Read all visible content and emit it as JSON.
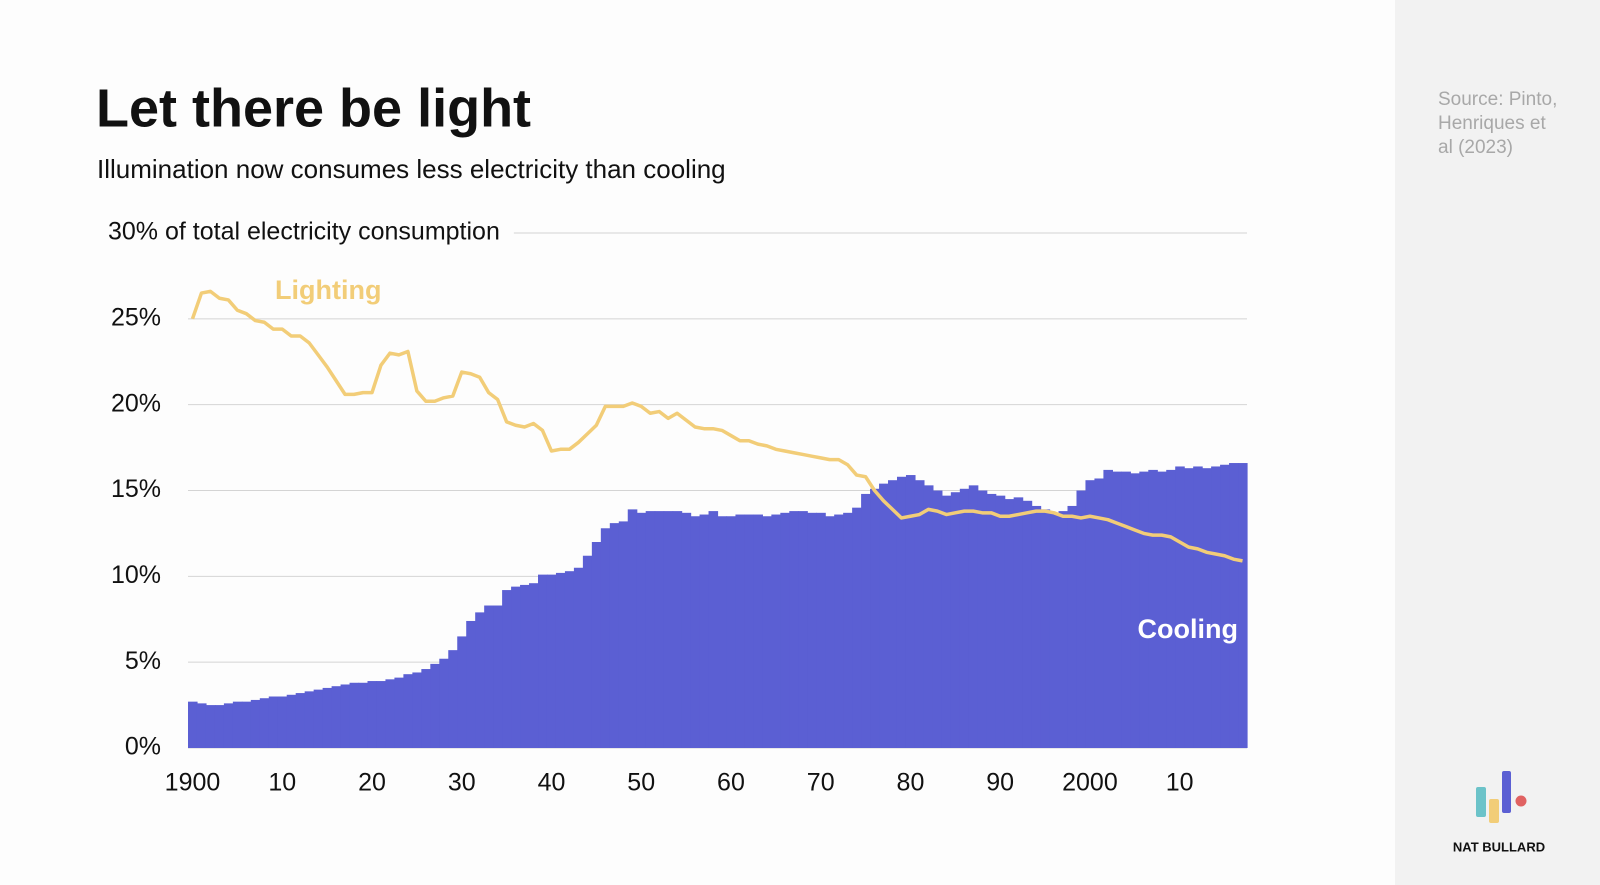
{
  "chart_data": {
    "type": "combo",
    "title": "Let there be light",
    "subtitle": "Illumination now consumes less electricity than cooling",
    "source": "Source: Pinto, Henriques et al (2023)",
    "brand": "NAT BULLARD",
    "x": [
      1900,
      1901,
      1902,
      1903,
      1904,
      1905,
      1906,
      1907,
      1908,
      1909,
      1910,
      1911,
      1912,
      1913,
      1914,
      1915,
      1916,
      1917,
      1918,
      1919,
      1920,
      1921,
      1922,
      1923,
      1924,
      1925,
      1926,
      1927,
      1928,
      1929,
      1930,
      1931,
      1932,
      1933,
      1934,
      1935,
      1936,
      1937,
      1938,
      1939,
      1940,
      1941,
      1942,
      1943,
      1944,
      1945,
      1946,
      1947,
      1948,
      1949,
      1950,
      1951,
      1952,
      1953,
      1954,
      1955,
      1956,
      1957,
      1958,
      1959,
      1960,
      1961,
      1962,
      1963,
      1964,
      1965,
      1966,
      1967,
      1968,
      1969,
      1970,
      1971,
      1972,
      1973,
      1974,
      1975,
      1976,
      1977,
      1978,
      1979,
      1980,
      1981,
      1982,
      1983,
      1984,
      1985,
      1986,
      1987,
      1988,
      1989,
      1990,
      1991,
      1992,
      1993,
      1994,
      1995,
      1996,
      1997,
      1998,
      1999,
      2000,
      2001,
      2002,
      2003,
      2004,
      2005,
      2006,
      2007,
      2008,
      2009,
      2010,
      2011,
      2012,
      2013,
      2014,
      2015,
      2016,
      2017
    ],
    "series": [
      {
        "name": "Cooling",
        "type": "bar",
        "color": "#5b5fd3",
        "values": [
          2.7,
          2.6,
          2.5,
          2.5,
          2.6,
          2.7,
          2.7,
          2.8,
          2.9,
          3.0,
          3.0,
          3.1,
          3.2,
          3.3,
          3.4,
          3.5,
          3.6,
          3.7,
          3.8,
          3.8,
          3.9,
          3.9,
          4.0,
          4.1,
          4.3,
          4.4,
          4.6,
          4.9,
          5.2,
          5.7,
          6.5,
          7.4,
          7.9,
          8.3,
          8.3,
          9.2,
          9.4,
          9.5,
          9.6,
          10.1,
          10.1,
          10.2,
          10.3,
          10.5,
          11.2,
          12.0,
          12.8,
          13.1,
          13.2,
          13.9,
          13.7,
          13.8,
          13.8,
          13.8,
          13.8,
          13.7,
          13.5,
          13.6,
          13.8,
          13.5,
          13.5,
          13.6,
          13.6,
          13.6,
          13.5,
          13.6,
          13.7,
          13.8,
          13.8,
          13.7,
          13.7,
          13.5,
          13.6,
          13.7,
          14.0,
          14.8,
          15.1,
          15.4,
          15.6,
          15.8,
          15.9,
          15.6,
          15.3,
          15.0,
          14.7,
          14.9,
          15.1,
          15.3,
          15.0,
          14.8,
          14.7,
          14.5,
          14.6,
          14.4,
          14.1,
          13.9,
          13.7,
          13.8,
          14.1,
          15.0,
          15.6,
          15.7,
          16.2,
          16.1,
          16.1,
          16.0,
          16.1,
          16.2,
          16.1,
          16.2,
          16.4,
          16.3,
          16.4,
          16.3,
          16.4,
          16.5,
          16.6,
          16.6
        ]
      },
      {
        "name": "Lighting",
        "type": "line",
        "color": "#f2cd78",
        "values": [
          25.0,
          26.5,
          26.6,
          26.2,
          26.1,
          25.5,
          25.3,
          24.9,
          24.8,
          24.4,
          24.4,
          24.0,
          24.0,
          23.6,
          22.9,
          22.2,
          21.4,
          20.6,
          20.6,
          20.7,
          20.7,
          22.3,
          23.0,
          22.9,
          23.1,
          20.8,
          20.2,
          20.2,
          20.4,
          20.5,
          21.9,
          21.8,
          21.6,
          20.7,
          20.3,
          19.0,
          18.8,
          18.7,
          18.9,
          18.5,
          17.3,
          17.4,
          17.4,
          17.8,
          18.3,
          18.8,
          19.9,
          19.9,
          19.9,
          20.1,
          19.9,
          19.5,
          19.6,
          19.2,
          19.5,
          19.1,
          18.7,
          18.6,
          18.6,
          18.5,
          18.2,
          17.9,
          17.9,
          17.7,
          17.6,
          17.4,
          17.3,
          17.2,
          17.1,
          17.0,
          16.9,
          16.8,
          16.8,
          16.5,
          15.9,
          15.8,
          15.0,
          14.4,
          13.9,
          13.4,
          13.5,
          13.6,
          13.9,
          13.8,
          13.6,
          13.7,
          13.8,
          13.8,
          13.7,
          13.7,
          13.5,
          13.5,
          13.6,
          13.7,
          13.8,
          13.8,
          13.7,
          13.5,
          13.5,
          13.4,
          13.5,
          13.4,
          13.3,
          13.1,
          12.9,
          12.7,
          12.5,
          12.4,
          12.4,
          12.3,
          12.0,
          11.7,
          11.6,
          11.4,
          11.3,
          11.2,
          11.0,
          10.9
        ]
      }
    ],
    "xlim": [
      1899.5,
      2017.5
    ],
    "xticks": [
      1900,
      {
        "value": 1910,
        "label": "10"
      },
      {
        "value": 1920,
        "label": "20"
      },
      {
        "value": 1930,
        "label": "30"
      },
      {
        "value": 1940,
        "label": "40"
      },
      {
        "value": 1950,
        "label": "50"
      },
      {
        "value": 1960,
        "label": "60"
      },
      {
        "value": 1970,
        "label": "70"
      },
      {
        "value": 1980,
        "label": "80"
      },
      {
        "value": 1990,
        "label": "90"
      },
      2000,
      {
        "value": 2010,
        "label": "10"
      }
    ],
    "ylim": [
      0,
      30
    ],
    "yticks": [
      {
        "value": 0,
        "label": "0%"
      },
      {
        "value": 5,
        "label": "5%"
      },
      {
        "value": 10,
        "label": "10%"
      },
      {
        "value": 15,
        "label": "15%"
      },
      {
        "value": 20,
        "label": "20%"
      },
      {
        "value": 25,
        "label": "25%"
      },
      {
        "value": 30,
        "label": "30% of total electricity consumption"
      }
    ],
    "grid": true
  }
}
